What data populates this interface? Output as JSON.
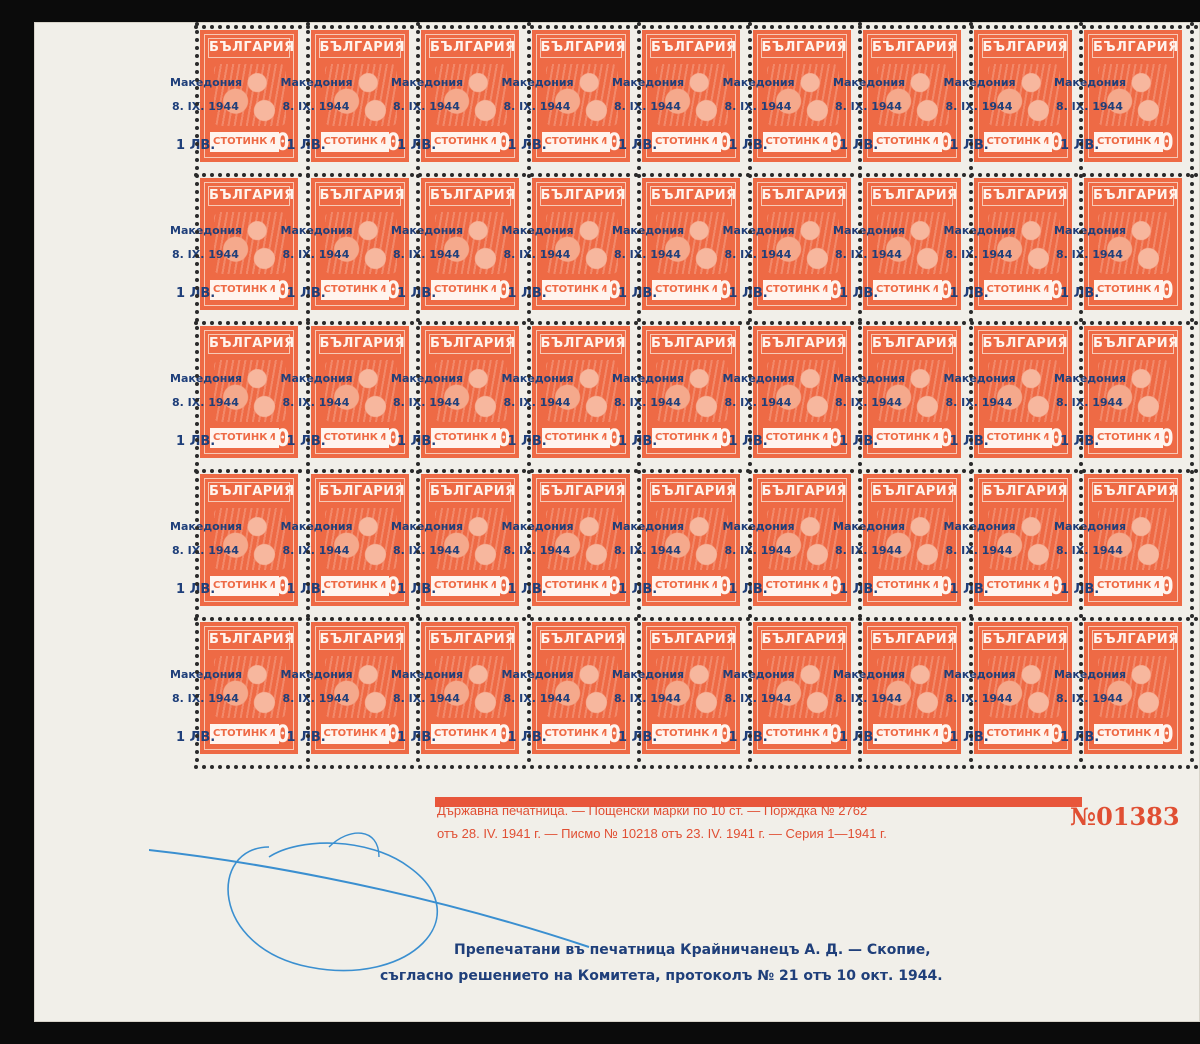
{
  "sheet": {
    "rows": 5,
    "cols": 9,
    "stamp": {
      "country": "БЪЛГАРИЯ",
      "value_label": "СТОТИНКИ",
      "value": "10",
      "color": "#ee6a45"
    },
    "overprint": {
      "line1": "Македония",
      "line2": "8. IX. 1944",
      "line3": "1 ЛВ.",
      "color": "#1f3f7a"
    }
  },
  "margin": {
    "imprint_line1": "Държавна печатница. — Пощенски марки по 10 ст. — Порждка № 2762",
    "imprint_line2": "отъ 28. IV. 1941 г. — Писмо № 10218 отъ 23. IV. 1941 г. — Серия 1—1941 г.",
    "serial": "№01383",
    "reprint_line1": "Препечатани въ печатница Крайничанецъ А. Д. — Скопие,",
    "reprint_line2": "съгласно решението на Комитета, протоколъ № 21 отъ 10 окт. 1944.",
    "imprint_color": "#e04f33",
    "reprint_color": "#1f3f7a",
    "signature_color": "#3a8fd0"
  }
}
